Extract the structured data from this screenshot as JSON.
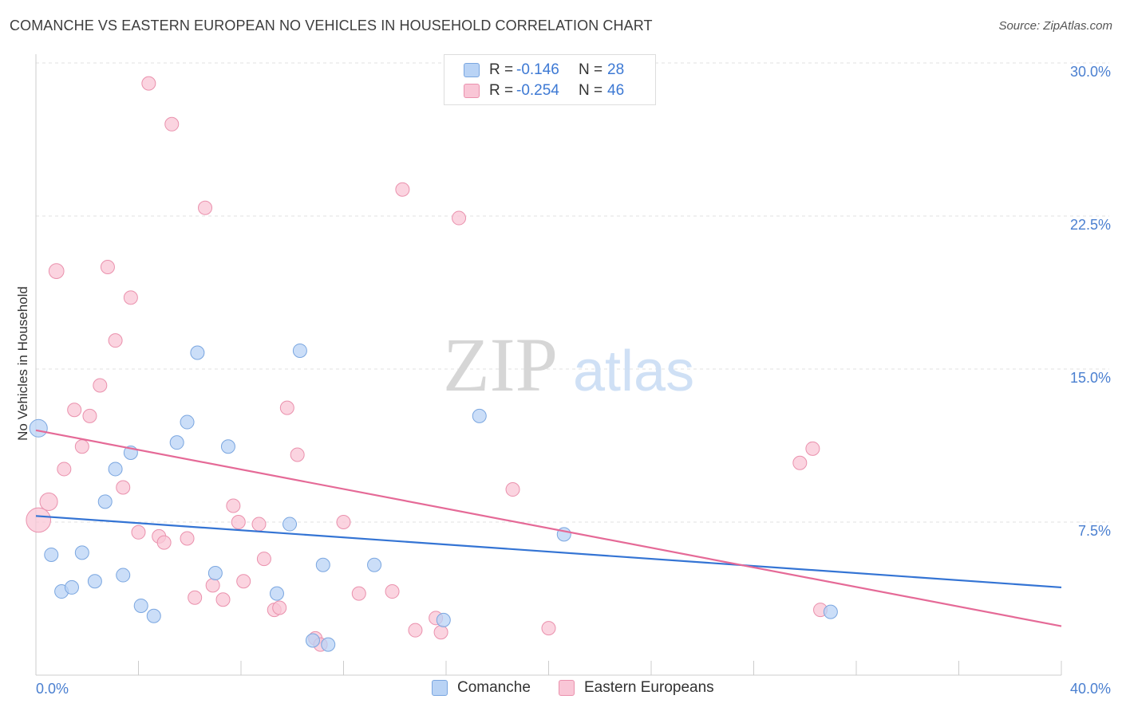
{
  "title": "COMANCHE VS EASTERN EUROPEAN NO VEHICLES IN HOUSEHOLD CORRELATION CHART",
  "source": "Source: ZipAtlas.com",
  "watermark": {
    "zip": "ZIP",
    "atlas": "atlas"
  },
  "legend": {
    "rows": [
      {
        "r_label": "R =",
        "r_value": "-0.146",
        "n_label": "N =",
        "n_value": "28"
      },
      {
        "r_label": "R =",
        "r_value": "-0.254",
        "n_label": "N =",
        "n_value": "46"
      }
    ]
  },
  "bottom_legend": {
    "comanche": "Comanche",
    "eastern": "Eastern Europeans"
  },
  "colors": {
    "comanche_fill": "#b9d3f5",
    "comanche_stroke": "#7aa6e0",
    "comanche_line": "#3474d4",
    "eastern_fill": "#f9c6d6",
    "eastern_stroke": "#ea91ad",
    "eastern_line": "#e56a97"
  },
  "chart_data": {
    "type": "scatter",
    "title": "COMANCHE VS EASTERN EUROPEAN NO VEHICLES IN HOUSEHOLD CORRELATION CHART",
    "xlabel": "",
    "ylabel": "No Vehicles in Household",
    "xlim": [
      0,
      40
    ],
    "ylim": [
      0,
      30
    ],
    "x_tick_labels": [
      "0.0%",
      "40.0%"
    ],
    "y_tick_labels": [
      "7.5%",
      "15.0%",
      "22.5%",
      "30.0%"
    ],
    "y_ticks": [
      7.5,
      15.0,
      22.5,
      30.0
    ],
    "grid": true,
    "legend_position": "top-center",
    "series": [
      {
        "name": "Comanche",
        "trend": [
          [
            0,
            7.8
          ],
          [
            40,
            4.3
          ]
        ],
        "points": [
          [
            0.1,
            12.1,
            1.3
          ],
          [
            0.6,
            5.9,
            1
          ],
          [
            1.0,
            4.1,
            1
          ],
          [
            1.4,
            4.3,
            1
          ],
          [
            1.8,
            6.0,
            1
          ],
          [
            2.3,
            4.6,
            1
          ],
          [
            2.7,
            8.5,
            1
          ],
          [
            3.1,
            10.1,
            1
          ],
          [
            3.4,
            4.9,
            1
          ],
          [
            3.7,
            10.9,
            1
          ],
          [
            4.1,
            3.4,
            1
          ],
          [
            4.6,
            2.9,
            1
          ],
          [
            5.5,
            11.4,
            1
          ],
          [
            5.9,
            12.4,
            1
          ],
          [
            6.3,
            15.8,
            1
          ],
          [
            7.0,
            5.0,
            1
          ],
          [
            7.5,
            11.2,
            1
          ],
          [
            9.4,
            4.0,
            1
          ],
          [
            9.9,
            7.4,
            1
          ],
          [
            10.3,
            15.9,
            1
          ],
          [
            10.8,
            1.7,
            1
          ],
          [
            11.2,
            5.4,
            1
          ],
          [
            11.4,
            1.5,
            1
          ],
          [
            13.2,
            5.4,
            1
          ],
          [
            15.9,
            2.7,
            1
          ],
          [
            17.3,
            12.7,
            1
          ],
          [
            20.6,
            6.9,
            1
          ],
          [
            31.0,
            3.1,
            1
          ]
        ]
      },
      {
        "name": "Eastern Europeans",
        "trend": [
          [
            0,
            12.0
          ],
          [
            40,
            2.4
          ]
        ],
        "points": [
          [
            0.1,
            7.6,
            1.8
          ],
          [
            0.5,
            8.5,
            1.3
          ],
          [
            0.8,
            19.8,
            1.1
          ],
          [
            1.1,
            10.1,
            1
          ],
          [
            1.5,
            13.0,
            1
          ],
          [
            1.8,
            11.2,
            1
          ],
          [
            2.1,
            12.7,
            1
          ],
          [
            2.5,
            14.2,
            1
          ],
          [
            2.8,
            20.0,
            1
          ],
          [
            3.1,
            16.4,
            1
          ],
          [
            3.4,
            9.2,
            1
          ],
          [
            3.7,
            18.5,
            1
          ],
          [
            4.0,
            7.0,
            1
          ],
          [
            4.4,
            29.0,
            1
          ],
          [
            4.8,
            6.8,
            1
          ],
          [
            5.0,
            6.5,
            1
          ],
          [
            5.3,
            27.0,
            1
          ],
          [
            5.9,
            6.7,
            1
          ],
          [
            6.2,
            3.8,
            1
          ],
          [
            6.6,
            22.9,
            1
          ],
          [
            6.9,
            4.4,
            1
          ],
          [
            7.3,
            3.7,
            1
          ],
          [
            7.7,
            8.3,
            1
          ],
          [
            7.9,
            7.5,
            1
          ],
          [
            8.1,
            4.6,
            1
          ],
          [
            8.7,
            7.4,
            1
          ],
          [
            8.9,
            5.7,
            1
          ],
          [
            9.3,
            3.2,
            1
          ],
          [
            9.5,
            3.3,
            1
          ],
          [
            9.8,
            13.1,
            1
          ],
          [
            10.2,
            10.8,
            1
          ],
          [
            10.9,
            1.8,
            1
          ],
          [
            11.1,
            1.5,
            1
          ],
          [
            12.0,
            7.5,
            1
          ],
          [
            12.6,
            4.0,
            1
          ],
          [
            13.9,
            4.1,
            1
          ],
          [
            14.3,
            23.8,
            1
          ],
          [
            14.8,
            2.2,
            1
          ],
          [
            15.6,
            2.8,
            1
          ],
          [
            15.8,
            2.1,
            1
          ],
          [
            16.5,
            22.4,
            1
          ],
          [
            18.6,
            9.1,
            1
          ],
          [
            20.0,
            2.3,
            1
          ],
          [
            29.8,
            10.4,
            1
          ],
          [
            30.3,
            11.1,
            1
          ],
          [
            30.6,
            3.2,
            1
          ]
        ]
      }
    ]
  }
}
